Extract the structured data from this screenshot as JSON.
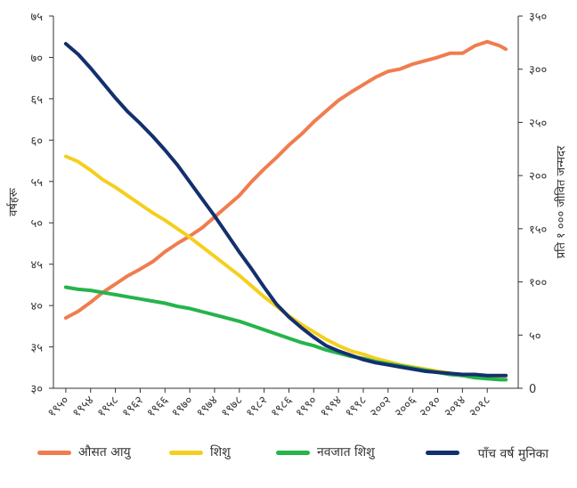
{
  "chart_data": {
    "type": "line",
    "title": "",
    "ylabel_left": "वर्षहरू",
    "ylabel_right": "प्रति १ ००० जीवित जन्मदर",
    "ylim_left": [
      30,
      75
    ],
    "ylim_right": [
      0,
      350
    ],
    "x_ticks": [
      1950,
      1954,
      1958,
      1962,
      1966,
      1970,
      1974,
      1978,
      1982,
      1986,
      1990,
      1994,
      1998,
      2002,
      2006,
      2010,
      2014,
      2018
    ],
    "x_tick_labels": [
      "१९५०",
      "१९५४",
      "१९५८",
      "१९६२",
      "१९६६",
      "१९७०",
      "१९७४",
      "१९७८",
      "१९८२",
      "१९८६",
      "१९९०",
      "१९९४",
      "१९९८",
      "२००२",
      "२००६",
      "२०१०",
      "२०१४",
      "२०१८"
    ],
    "y_left_ticks": [
      30,
      35,
      40,
      45,
      50,
      55,
      60,
      65,
      70,
      75
    ],
    "y_left_tick_labels": [
      "३०",
      "३५",
      "४०",
      "४५",
      "५०",
      "५५",
      "६०",
      "६५",
      "७०",
      "७५"
    ],
    "y_right_ticks": [
      0,
      50,
      100,
      150,
      200,
      250,
      300,
      350
    ],
    "y_right_tick_labels": [
      "0",
      "५०",
      "१००",
      "१५०",
      "२००",
      "२५०",
      "३००",
      "३५०"
    ],
    "grid": false,
    "legend_position": "bottom",
    "series": [
      {
        "name": "औसत आयु",
        "axis": "left",
        "color": "#F07D4F",
        "x": [
          1950,
          1952,
          1954,
          1956,
          1958,
          1960,
          1962,
          1964,
          1966,
          1968,
          1970,
          1972,
          1974,
          1976,
          1978,
          1980,
          1982,
          1984,
          1986,
          1988,
          1990,
          1992,
          1994,
          1996,
          1998,
          2000,
          2002,
          2004,
          2006,
          2008,
          2010,
          2012,
          2014,
          2016,
          2018,
          2020,
          2021
        ],
        "y": [
          38.5,
          39.3,
          40.4,
          41.6,
          42.6,
          43.6,
          44.4,
          45.3,
          46.5,
          47.5,
          48.4,
          49.4,
          50.7,
          52.0,
          53.3,
          55.0,
          56.5,
          57.9,
          59.4,
          60.7,
          62.2,
          63.5,
          64.8,
          65.8,
          66.7,
          67.6,
          68.3,
          68.6,
          69.2,
          69.6,
          70.0,
          70.5,
          70.5,
          71.4,
          71.9,
          71.4,
          71.0
        ]
      },
      {
        "name": "शिशु",
        "axis": "right",
        "color": "#F5CF1F",
        "x": [
          1950,
          1952,
          1954,
          1956,
          1958,
          1960,
          1962,
          1964,
          1966,
          1968,
          1970,
          1972,
          1974,
          1976,
          1978,
          1980,
          1982,
          1984,
          1986,
          1988,
          1990,
          1992,
          1994,
          1996,
          1998,
          2000,
          2002,
          2004,
          2006,
          2008,
          2010,
          2012,
          2014,
          2016,
          2018,
          2020,
          2021
        ],
        "y": [
          218,
          213,
          205,
          196,
          189,
          181,
          173,
          165,
          158,
          150,
          142,
          133,
          124,
          115,
          106,
          96,
          86,
          77,
          68,
          60,
          53,
          46,
          40,
          35,
          32,
          28,
          25,
          22,
          20,
          18,
          16,
          14,
          12,
          11,
          10,
          9,
          8
        ]
      },
      {
        "name": "नवजात शिशु",
        "axis": "right",
        "color": "#26B44C",
        "x": [
          1950,
          1952,
          1954,
          1956,
          1958,
          1960,
          1962,
          1964,
          1966,
          1968,
          1970,
          1972,
          1974,
          1976,
          1978,
          1980,
          1982,
          1984,
          1986,
          1988,
          1990,
          1992,
          1994,
          1996,
          1998,
          2000,
          2002,
          2004,
          2006,
          2008,
          2010,
          2012,
          2014,
          2016,
          2018,
          2020,
          2021
        ],
        "y": [
          95,
          93,
          92,
          90,
          88,
          86,
          84,
          82,
          80,
          77,
          75,
          72,
          69,
          66,
          63,
          59,
          55,
          51,
          47,
          43,
          40,
          36,
          33,
          30,
          28,
          25,
          23,
          21,
          19,
          17,
          15,
          13,
          12,
          10,
          9,
          8,
          8
        ]
      },
      {
        "name": "पाँच वर्ष मुनिका",
        "axis": "right",
        "color": "#13306E",
        "x": [
          1950,
          1952,
          1954,
          1956,
          1958,
          1960,
          1962,
          1964,
          1966,
          1968,
          1970,
          1972,
          1974,
          1976,
          1978,
          1980,
          1982,
          1984,
          1986,
          1988,
          1990,
          1992,
          1994,
          1996,
          1998,
          2000,
          2002,
          2004,
          2006,
          2008,
          2010,
          2012,
          2014,
          2016,
          2018,
          2020,
          2021
        ],
        "y": [
          324,
          314,
          301,
          287,
          273,
          260,
          249,
          237,
          224,
          210,
          194,
          178,
          162,
          145,
          128,
          112,
          95,
          79,
          67,
          57,
          48,
          40,
          35,
          31,
          27,
          24,
          22,
          20,
          18,
          16,
          15,
          14,
          13,
          13,
          12,
          12,
          12
        ]
      }
    ]
  }
}
